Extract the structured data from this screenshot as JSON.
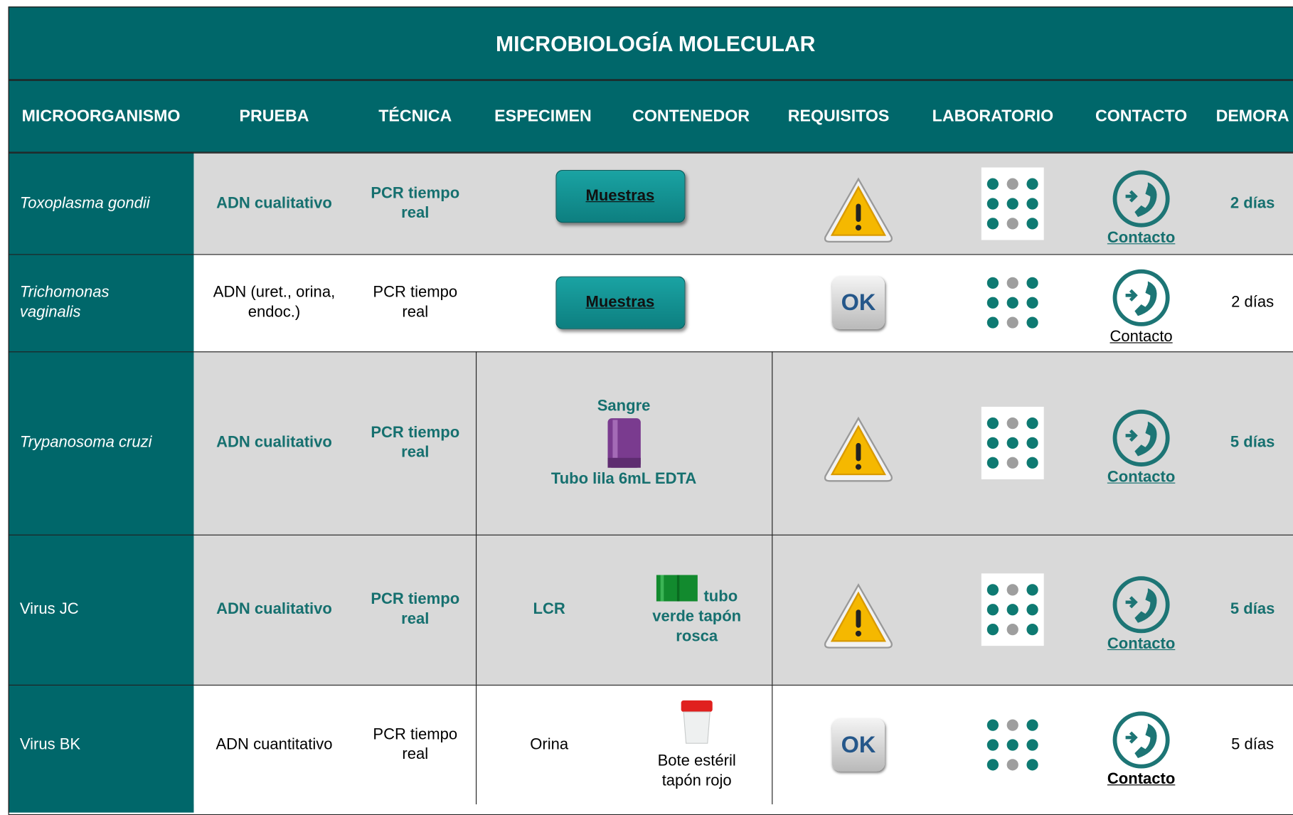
{
  "title": "MICROBIOLOGÍA MOLECULAR",
  "headers": [
    "MICROORGANISMO",
    "PRUEBA",
    "TÉCNICA",
    "ESPECIMEN",
    "CONTENEDOR",
    "REQUISITOS",
    "LABORATORIO",
    "CONTACTO",
    "DEMORA"
  ],
  "rows": [
    {
      "organism": "Toxoplasma gondii",
      "test": "ADN cualitativo",
      "technique": "PCR tiempo real",
      "samples_button": "Muestras",
      "contact": "Contacto",
      "delay": "2 días"
    },
    {
      "organism": "Trichomonas vaginalis",
      "test": "ADN (uret., orina, endoc.)",
      "technique": "PCR tiempo real",
      "samples_button": "Muestras",
      "requirements": "OK",
      "contact": "Contacto",
      "delay": "2 días"
    },
    {
      "organism": "Trypanosoma cruzi",
      "test": "ADN cualitativo",
      "technique": "PCR tiempo real",
      "specimen": "Sangre",
      "container": "Tubo lila 6mL EDTA",
      "contact": "Contacto",
      "delay": "5 días"
    },
    {
      "organism": "Virus JC",
      "test": "ADN cualitativo",
      "technique": "PCR tiempo real",
      "specimen": "LCR",
      "container": "tubo verde tapón rosca",
      "contact": "Contacto",
      "delay": "5 días"
    },
    {
      "organism": "Virus BK",
      "test": "ADN cuantitativo",
      "technique": "PCR tiempo real",
      "specimen": "Orina",
      "container": "Bote estéril tapón rojo",
      "requirements": "OK",
      "contact": "Contacto",
      "delay": "5 días"
    }
  ]
}
